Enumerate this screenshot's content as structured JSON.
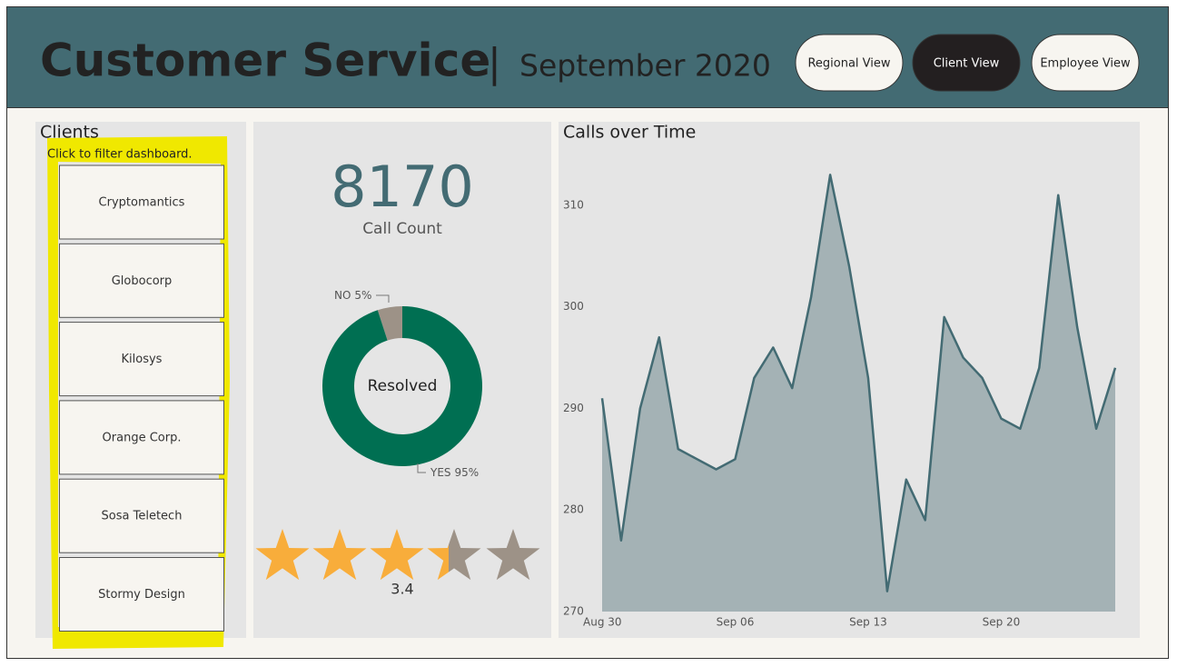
{
  "header": {
    "title": "Customer Service",
    "separator": "|",
    "subtitle": "September 2020",
    "buttons": [
      "Regional View",
      "Client View",
      "Employee View"
    ],
    "active_button": 1
  },
  "clients": {
    "title": "Clients",
    "hint": "Click to filter dashboard.",
    "items": [
      "Cryptomantics",
      "Globocorp",
      "Kilosys",
      "Orange Corp.",
      "Sosa Teletech",
      "Stormy Design"
    ]
  },
  "kpi": {
    "value": 8170,
    "label": "Call Count"
  },
  "rating": {
    "value": 3.4,
    "max": 5,
    "color": "#f8ad3b",
    "empty_color": "#9d9287"
  },
  "chart_data": [
    {
      "type": "pie",
      "center_label": "Resolved",
      "categories": [
        "NO",
        "YES"
      ],
      "values": [
        5,
        95
      ],
      "value_labels": [
        "5%",
        "95%"
      ],
      "colors": [
        "#9d9287",
        "#006f52"
      ]
    },
    {
      "type": "line",
      "title": "Calls over Time",
      "x": [
        "Aug 30",
        "Aug 31",
        "Sep 01",
        "Sep 02",
        "Sep 03",
        "Sep 04",
        "Sep 05",
        "Sep 06",
        "Sep 07",
        "Sep 08",
        "Sep 09",
        "Sep 10",
        "Sep 11",
        "Sep 12",
        "Sep 13",
        "Sep 14",
        "Sep 15",
        "Sep 16",
        "Sep 17",
        "Sep 18",
        "Sep 19",
        "Sep 20",
        "Sep 21",
        "Sep 22",
        "Sep 23",
        "Sep 24",
        "Sep 25",
        "Sep 26"
      ],
      "values": [
        291,
        277,
        290,
        297,
        286,
        285,
        284,
        285,
        293,
        296,
        292,
        301,
        313,
        304,
        293,
        272,
        283,
        279,
        299,
        295,
        293,
        289,
        288,
        294,
        311,
        298,
        288,
        294
      ],
      "color": "#436b73",
      "fill": "#a4b2b5",
      "xticks": [
        "Aug 30",
        "Sep 06",
        "Sep 13",
        "Sep 20"
      ],
      "ylim": [
        270,
        315
      ],
      "yticks": [
        270,
        280,
        290,
        300,
        310
      ]
    }
  ]
}
